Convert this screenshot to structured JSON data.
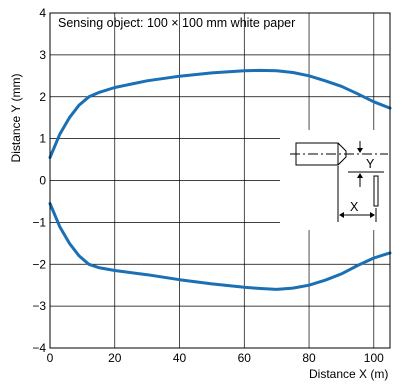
{
  "chart_data": {
    "type": "line",
    "annotation": "Sensing object: 100 × 100 mm white paper",
    "xlabel": "Distance X (m)",
    "ylabel": "Distance Y (mm)",
    "xlim": [
      0,
      105
    ],
    "ylim": [
      -4,
      4
    ],
    "x_ticks": [
      "0",
      "20",
      "40",
      "60",
      "80",
      "100"
    ],
    "y_ticks": [
      "4",
      "3",
      "2",
      "1",
      "0",
      "−1",
      "−2",
      "−3",
      "−4"
    ],
    "grid": true,
    "color": "#1a6fb5",
    "series": [
      {
        "x": [
          0,
          3,
          6,
          9,
          12,
          15,
          20,
          30,
          40,
          50,
          60,
          65,
          70,
          75,
          80,
          85,
          90,
          95,
          100,
          105
        ],
        "y": [
          0.55,
          1.1,
          1.5,
          1.8,
          2.0,
          2.1,
          2.22,
          2.38,
          2.49,
          2.57,
          2.62,
          2.63,
          2.62,
          2.58,
          2.5,
          2.38,
          2.25,
          2.07,
          1.88,
          1.73
        ]
      },
      {
        "x": [
          0,
          3,
          6,
          9,
          12,
          15,
          20,
          30,
          40,
          50,
          60,
          65,
          70,
          75,
          80,
          85,
          90,
          95,
          100,
          105
        ],
        "y": [
          -0.55,
          -1.1,
          -1.5,
          -1.8,
          -2.0,
          -2.08,
          -2.15,
          -2.25,
          -2.37,
          -2.47,
          -2.55,
          -2.58,
          -2.6,
          -2.57,
          -2.5,
          -2.38,
          -2.23,
          -2.03,
          -1.85,
          -1.73
        ]
      }
    ],
    "inset_labels": {
      "y": "Y",
      "x": "X"
    }
  }
}
